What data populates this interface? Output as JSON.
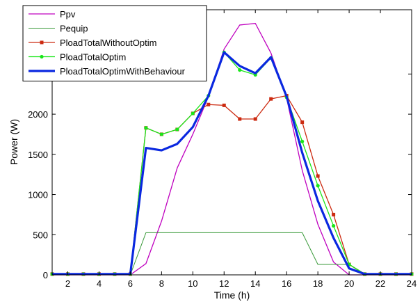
{
  "chart_data": {
    "type": "line",
    "xlabel": "Time (h)",
    "ylabel": "Power (W)",
    "xlim": [
      1,
      24
    ],
    "ylim": [
      0,
      3300
    ],
    "xticks": [
      2,
      4,
      6,
      8,
      10,
      12,
      14,
      16,
      18,
      20,
      22,
      24
    ],
    "yticks": [
      0,
      500,
      1000,
      1500,
      2000,
      2500
    ],
    "grid": false,
    "legend_position": "top-left",
    "x": [
      1,
      2,
      3,
      4,
      5,
      6,
      7,
      8,
      9,
      10,
      11,
      12,
      13,
      14,
      15,
      16,
      17,
      18,
      19,
      20,
      21,
      22,
      23,
      24
    ],
    "series": [
      {
        "name": "Ppv",
        "color": "#bf00bf",
        "marker": "none",
        "values": [
          0,
          0,
          0,
          0,
          0,
          0,
          140,
          670,
          1330,
          1750,
          2220,
          2810,
          3110,
          3130,
          2760,
          2200,
          1300,
          630,
          160,
          0,
          0,
          0,
          0,
          0
        ]
      },
      {
        "name": "Pequip",
        "color": "#3a9a3a",
        "marker": "none",
        "values": [
          0,
          0,
          0,
          0,
          0,
          0,
          525,
          525,
          525,
          525,
          525,
          525,
          525,
          525,
          525,
          525,
          525,
          130,
          130,
          130,
          0,
          0,
          0,
          0
        ]
      },
      {
        "name": "PloadTotalWithoutOptim",
        "color": "#cc2a10",
        "marker": "square",
        "values": [
          10,
          10,
          10,
          10,
          10,
          10,
          1830,
          1750,
          1810,
          2010,
          2120,
          2110,
          1940,
          1940,
          2190,
          2230,
          1900,
          1230,
          750,
          130,
          10,
          10,
          10,
          10
        ]
      },
      {
        "name": "PloadTotalOptim",
        "color": "#19e619",
        "marker": "circle",
        "values": [
          10,
          10,
          10,
          10,
          10,
          10,
          1830,
          1750,
          1810,
          2010,
          2230,
          2770,
          2550,
          2490,
          2700,
          2210,
          1660,
          1110,
          610,
          130,
          10,
          10,
          10,
          10
        ]
      },
      {
        "name": "PloadTotalOptimWithBehaviour",
        "color": "#0a28e0",
        "marker": "none",
        "values": [
          10,
          10,
          10,
          10,
          10,
          10,
          1580,
          1550,
          1630,
          1840,
          2230,
          2770,
          2600,
          2510,
          2710,
          2220,
          1520,
          920,
          460,
          80,
          10,
          10,
          10,
          10
        ]
      }
    ]
  }
}
